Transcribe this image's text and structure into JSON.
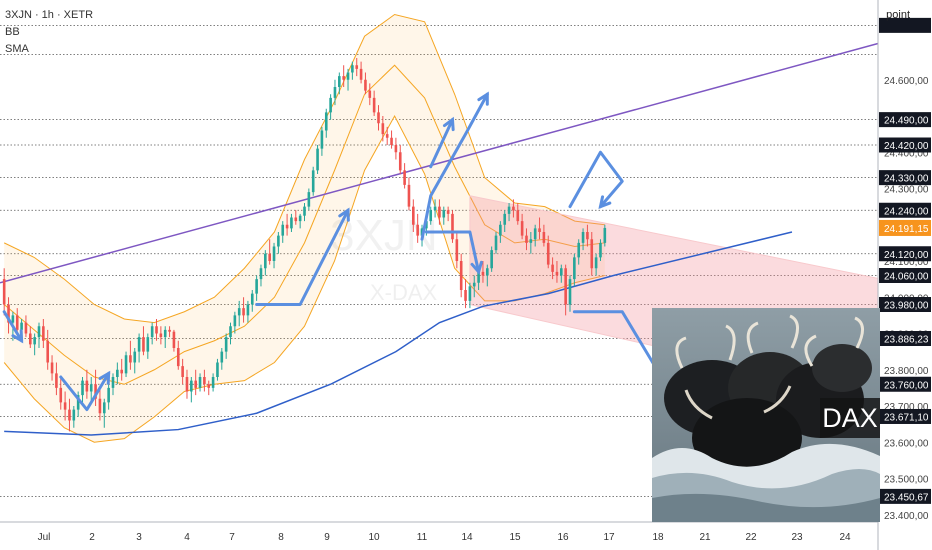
{
  "header": {
    "symbol": "3XJN · 1h · XETR",
    "indicators": [
      "BB",
      "SMA"
    ]
  },
  "price_axis": {
    "unit": "point",
    "tick_labels": [
      "24.600,00",
      "24.400,00",
      "24.300,00",
      "24.100,00",
      "24.000,00",
      "23.900,00",
      "23.800,00",
      "23.700,00",
      "23.600,00",
      "23.500,00",
      "23.400,00"
    ],
    "level_labels": [
      "24.490,00",
      "24.420,00",
      "24.330,00",
      "24.240,00",
      "24.120,00",
      "24.060,00",
      "23.980,00",
      "23.886,23",
      "23.760,00",
      "23.671,10",
      "23.450,67"
    ],
    "current_price": "24.191,15"
  },
  "time_axis": {
    "labels": [
      "Jul",
      "2",
      "3",
      "4",
      "7",
      "8",
      "9",
      "10",
      "11",
      "14",
      "15",
      "16",
      "17",
      "18",
      "21",
      "22",
      "23",
      "24"
    ]
  },
  "photo": {
    "caption": "DAX"
  },
  "chart_data": {
    "type": "candlestick",
    "ylim": [
      23380,
      24820
    ],
    "yticks": [
      24600,
      24400,
      24300,
      24100,
      24000,
      23900,
      23800,
      23700,
      23600,
      23500,
      23400
    ],
    "levels": [
      24750,
      24670,
      24490,
      24420,
      24330,
      24240,
      24120,
      24060,
      23980,
      23886.23,
      23760,
      23671.1,
      23450.67
    ],
    "current_price": 24191.15,
    "candles": [
      [
        24050,
        24080,
        23950,
        23980
      ],
      [
        23980,
        24000,
        23900,
        23930
      ],
      [
        23930,
        23960,
        23880,
        23950
      ],
      [
        23950,
        23970,
        23900,
        23910
      ],
      [
        23910,
        23940,
        23880,
        23930
      ],
      [
        23930,
        23950,
        23890,
        23900
      ],
      [
        23900,
        23920,
        23860,
        23870
      ],
      [
        23870,
        23900,
        23840,
        23890
      ],
      [
        23890,
        23930,
        23860,
        23920
      ],
      [
        23920,
        23940,
        23860,
        23880
      ],
      [
        23880,
        23910,
        23800,
        23820
      ],
      [
        23820,
        23840,
        23770,
        23790
      ],
      [
        23790,
        23820,
        23730,
        23750
      ],
      [
        23750,
        23780,
        23690,
        23710
      ],
      [
        23710,
        23740,
        23660,
        23690
      ],
      [
        23690,
        23720,
        23630,
        23660
      ],
      [
        23660,
        23700,
        23640,
        23690
      ],
      [
        23690,
        23740,
        23670,
        23730
      ],
      [
        23730,
        23780,
        23710,
        23770
      ],
      [
        23770,
        23800,
        23720,
        23740
      ],
      [
        23740,
        23780,
        23710,
        23760
      ],
      [
        23760,
        23800,
        23700,
        23720
      ],
      [
        23720,
        23750,
        23660,
        23680
      ],
      [
        23680,
        23720,
        23640,
        23710
      ],
      [
        23710,
        23760,
        23690,
        23750
      ],
      [
        23750,
        23790,
        23730,
        23780
      ],
      [
        23780,
        23820,
        23760,
        23800
      ],
      [
        23800,
        23830,
        23770,
        23790
      ],
      [
        23790,
        23850,
        23780,
        23840
      ],
      [
        23840,
        23880,
        23800,
        23820
      ],
      [
        23820,
        23860,
        23790,
        23850
      ],
      [
        23850,
        23900,
        23820,
        23890
      ],
      [
        23890,
        23920,
        23840,
        23850
      ],
      [
        23850,
        23900,
        23830,
        23890
      ],
      [
        23890,
        23930,
        23870,
        23920
      ],
      [
        23920,
        23940,
        23880,
        23900
      ],
      [
        23900,
        23920,
        23870,
        23890
      ],
      [
        23890,
        23920,
        23860,
        23910
      ],
      [
        23910,
        23920,
        23890,
        23905
      ],
      [
        23905,
        23910,
        23850,
        23860
      ],
      [
        23860,
        23880,
        23800,
        23810
      ],
      [
        23810,
        23830,
        23760,
        23780
      ],
      [
        23780,
        23800,
        23720,
        23740
      ],
      [
        23740,
        23780,
        23710,
        23770
      ],
      [
        23770,
        23800,
        23730,
        23750
      ],
      [
        23750,
        23790,
        23740,
        23780
      ],
      [
        23780,
        23800,
        23740,
        23760
      ],
      [
        23760,
        23770,
        23730,
        23750
      ],
      [
        23750,
        23790,
        23740,
        23780
      ],
      [
        23780,
        23830,
        23770,
        23820
      ],
      [
        23820,
        23860,
        23800,
        23850
      ],
      [
        23850,
        23900,
        23830,
        23890
      ],
      [
        23890,
        23930,
        23870,
        23920
      ],
      [
        23920,
        23960,
        23900,
        23950
      ],
      [
        23950,
        23990,
        23920,
        23970
      ],
      [
        23970,
        24000,
        23930,
        23950
      ],
      [
        23950,
        23990,
        23930,
        23980
      ],
      [
        23980,
        24020,
        23960,
        24010
      ],
      [
        24010,
        24060,
        23990,
        24050
      ],
      [
        24050,
        24090,
        24030,
        24080
      ],
      [
        24080,
        24130,
        24060,
        24120
      ],
      [
        24120,
        24160,
        24090,
        24100
      ],
      [
        24100,
        24150,
        24080,
        24140
      ],
      [
        24140,
        24180,
        24120,
        24170
      ],
      [
        24170,
        24210,
        24150,
        24200
      ],
      [
        24200,
        24230,
        24170,
        24190
      ],
      [
        24190,
        24230,
        24180,
        24220
      ],
      [
        24220,
        24240,
        24200,
        24210
      ],
      [
        24210,
        24230,
        24190,
        24225
      ],
      [
        24225,
        24260,
        24210,
        24250
      ],
      [
        24250,
        24300,
        24240,
        24290
      ],
      [
        24290,
        24360,
        24280,
        24350
      ],
      [
        24350,
        24420,
        24340,
        24410
      ],
      [
        24410,
        24470,
        24390,
        24460
      ],
      [
        24460,
        24520,
        24440,
        24510
      ],
      [
        24510,
        24560,
        24490,
        24550
      ],
      [
        24550,
        24600,
        24530,
        24580
      ],
      [
        24580,
        24620,
        24560,
        24610
      ],
      [
        24610,
        24640,
        24580,
        24600
      ],
      [
        24600,
        24630,
        24570,
        24620
      ],
      [
        24620,
        24650,
        24600,
        24640
      ],
      [
        24640,
        24660,
        24610,
        24630
      ],
      [
        24630,
        24650,
        24590,
        24600
      ],
      [
        24600,
        24620,
        24560,
        24570
      ],
      [
        24570,
        24590,
        24530,
        24550
      ],
      [
        24550,
        24570,
        24500,
        24510
      ],
      [
        24510,
        24530,
        24460,
        24480
      ],
      [
        24480,
        24500,
        24430,
        24450
      ],
      [
        24450,
        24470,
        24420,
        24440
      ],
      [
        24440,
        24460,
        24410,
        24420
      ],
      [
        24420,
        24440,
        24380,
        24400
      ],
      [
        24400,
        24420,
        24340,
        24350
      ],
      [
        24350,
        24370,
        24300,
        24310
      ],
      [
        24310,
        24330,
        24240,
        24250
      ],
      [
        24250,
        24270,
        24180,
        24200
      ],
      [
        24200,
        24230,
        24150,
        24170
      ],
      [
        24170,
        24200,
        24140,
        24190
      ],
      [
        24190,
        24220,
        24170,
        24210
      ],
      [
        24210,
        24250,
        24200,
        24240
      ],
      [
        24240,
        24270,
        24220,
        24250
      ],
      [
        24250,
        24270,
        24200,
        24220
      ],
      [
        24220,
        24250,
        24200,
        24240
      ],
      [
        24240,
        24250,
        24210,
        24230
      ],
      [
        24230,
        24240,
        24150,
        24160
      ],
      [
        24160,
        24180,
        24080,
        24100
      ],
      [
        24100,
        24120,
        24000,
        24020
      ],
      [
        24020,
        24050,
        23970,
        23990
      ],
      [
        23990,
        24040,
        23970,
        24030
      ],
      [
        24030,
        24060,
        24000,
        24040
      ],
      [
        24040,
        24080,
        24020,
        24070
      ],
      [
        24070,
        24100,
        24040,
        24060
      ],
      [
        24060,
        24090,
        24030,
        24080
      ],
      [
        24080,
        24140,
        24070,
        24130
      ],
      [
        24130,
        24180,
        24120,
        24170
      ],
      [
        24170,
        24210,
        24150,
        24200
      ],
      [
        24200,
        24240,
        24180,
        24230
      ],
      [
        24230,
        24260,
        24210,
        24250
      ],
      [
        24250,
        24270,
        24220,
        24240
      ],
      [
        24240,
        24260,
        24200,
        24210
      ],
      [
        24210,
        24230,
        24160,
        24170
      ],
      [
        24170,
        24190,
        24130,
        24150
      ],
      [
        24150,
        24180,
        24120,
        24160
      ],
      [
        24160,
        24200,
        24140,
        24190
      ],
      [
        24190,
        24220,
        24160,
        24180
      ],
      [
        24180,
        24200,
        24140,
        24150
      ],
      [
        24150,
        24170,
        24080,
        24090
      ],
      [
        24090,
        24110,
        24050,
        24070
      ],
      [
        24070,
        24100,
        24040,
        24060
      ],
      [
        24060,
        24090,
        24040,
        24080
      ],
      [
        24080,
        24090,
        23950,
        23980
      ],
      [
        23980,
        24060,
        23960,
        24050
      ],
      [
        24050,
        24120,
        24030,
        24110
      ],
      [
        24110,
        24160,
        24090,
        24150
      ],
      [
        24150,
        24190,
        24130,
        24180
      ],
      [
        24180,
        24200,
        24140,
        24160
      ],
      [
        24160,
        24180,
        24060,
        24080
      ],
      [
        24080,
        24120,
        24060,
        24110
      ],
      [
        24110,
        24160,
        24100,
        24150
      ],
      [
        24150,
        24200,
        24140,
        24191.15
      ]
    ],
    "trendlines": [
      {
        "name": "purple-trendline",
        "color": "#7e57c2",
        "points": [
          [
            0,
            24040
          ],
          [
            181,
            24700
          ]
        ]
      },
      {
        "name": "sma-line",
        "color": "#2f5fc9",
        "points": [
          [
            0,
            23630
          ],
          [
            20,
            23620
          ],
          [
            40,
            23635
          ],
          [
            58,
            23680
          ],
          [
            75,
            23760
          ],
          [
            90,
            23850
          ],
          [
            100,
            23930
          ],
          [
            110,
            23975
          ],
          [
            125,
            24010
          ],
          [
            140,
            24060
          ],
          [
            181,
            24180
          ]
        ]
      }
    ],
    "bollinger": {
      "color": "#f5a623",
      "upper": [
        24150,
        24110,
        24050,
        23980,
        23940,
        23930,
        23960,
        24000,
        24080,
        24180,
        24380,
        24540,
        24720,
        24780,
        24760,
        24560,
        24330,
        24260,
        24250,
        24210,
        24200
      ],
      "middle": [
        23980,
        23910,
        23840,
        23780,
        23760,
        23800,
        23850,
        23880,
        23920,
        24000,
        24150,
        24350,
        24560,
        24640,
        24550,
        24360,
        24200,
        24150,
        24160,
        24140,
        24150
      ],
      "lower": [
        23820,
        23720,
        23640,
        23600,
        23610,
        23670,
        23740,
        23760,
        23770,
        23820,
        23920,
        24100,
        24350,
        24500,
        24340,
        24080,
        23990,
        23990,
        24010,
        24040,
        24060
      ]
    },
    "channel": {
      "color": "#f8c9cc",
      "top": [
        [
          107,
          24280
        ],
        [
          181,
          24100
        ]
      ],
      "bottom": [
        [
          107,
          23980
        ],
        [
          181,
          23780
        ]
      ]
    },
    "annotation_arrows": [
      [
        [
          0,
          23960
        ],
        [
          4,
          23880
        ]
      ],
      [
        [
          13,
          23780
        ],
        [
          19,
          23690
        ],
        [
          24,
          23790
        ]
      ],
      [
        [
          58,
          23980
        ],
        [
          68,
          23980
        ],
        [
          79,
          24240
        ]
      ],
      [
        [
          98,
          24360
        ],
        [
          103,
          24490
        ]
      ],
      [
        [
          96,
          24160
        ],
        [
          98,
          24280
        ],
        [
          106,
          24450
        ],
        [
          111,
          24560
        ]
      ],
      [
        [
          97,
          24180
        ],
        [
          107,
          24180
        ],
        [
          109,
          24070
        ]
      ],
      [
        [
          130,
          24250
        ],
        [
          137,
          24400
        ],
        [
          142,
          24320
        ],
        [
          137,
          24250
        ]
      ],
      [
        [
          131,
          23960
        ],
        [
          142,
          23960
        ],
        [
          152,
          23760
        ]
      ]
    ],
    "time_labels_index": [
      9,
      21,
      33,
      45,
      57,
      69,
      81,
      93,
      105,
      117,
      129,
      141,
      153,
      165,
      177,
      189,
      201,
      213
    ],
    "watermark": [
      "3XJN",
      "X-DAX"
    ]
  }
}
